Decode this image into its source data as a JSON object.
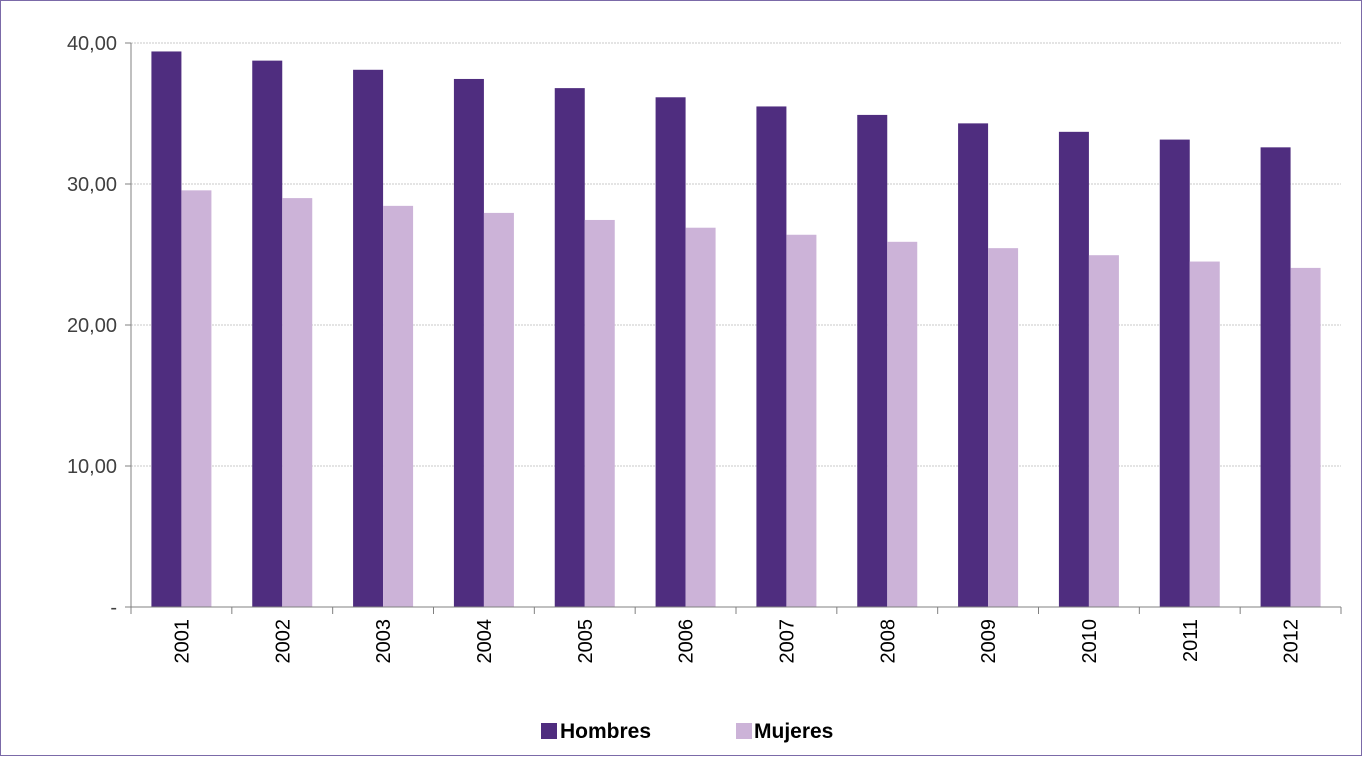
{
  "chart_data": {
    "type": "bar",
    "categories": [
      "2001",
      "2002",
      "2003",
      "2004",
      "2005",
      "2006",
      "2007",
      "2008",
      "2009",
      "2010",
      "2011",
      "2012"
    ],
    "series": [
      {
        "name": "Hombres",
        "color": "#4f2d7f",
        "values": [
          39.4,
          38.75,
          38.1,
          37.45,
          36.8,
          36.15,
          35.5,
          34.9,
          34.3,
          33.7,
          33.15,
          32.6
        ]
      },
      {
        "name": "Mujeres",
        "color": "#ccb3d8",
        "values": [
          29.55,
          29.0,
          28.45,
          27.95,
          27.45,
          26.9,
          26.4,
          25.9,
          25.45,
          24.95,
          24.5,
          24.05
        ]
      }
    ],
    "y_ticks": [
      {
        "value": 0,
        "label": "-"
      },
      {
        "value": 10,
        "label": "10,00"
      },
      {
        "value": 20,
        "label": "20,00"
      },
      {
        "value": 30,
        "label": "30,00"
      },
      {
        "value": 40,
        "label": "40,00"
      }
    ],
    "ylim": [
      0,
      40
    ],
    "grid": true,
    "legend_position": "bottom"
  }
}
